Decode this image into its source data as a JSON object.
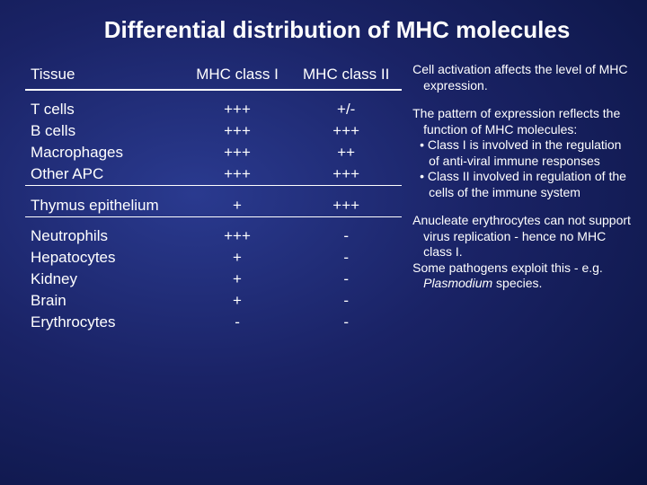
{
  "title": "Differential distribution of MHC molecules",
  "table": {
    "headers": {
      "c0": "Tissue",
      "c1": "MHC class I",
      "c2": "MHC class II"
    },
    "g1": {
      "r0": {
        "t": "T cells",
        "c1": "+++",
        "c2": "+/-"
      },
      "r1": {
        "t": "B cells",
        "c1": "+++",
        "c2": "+++"
      },
      "r2": {
        "t": "Macrophages",
        "c1": "+++",
        "c2": "++"
      },
      "r3": {
        "t": "Other APC",
        "c1": "+++",
        "c2": "+++"
      }
    },
    "g2": {
      "r0": {
        "t": "Thymus epithelium",
        "c1": "+",
        "c2": "+++"
      }
    },
    "g3": {
      "r0": {
        "t": "Neutrophils",
        "c1": "+++",
        "c2": "-"
      },
      "r1": {
        "t": "Hepatocytes",
        "c1": "+",
        "c2": "-"
      },
      "r2": {
        "t": "Kidney",
        "c1": "+",
        "c2": "-"
      },
      "r3": {
        "t": "Brain",
        "c1": "+",
        "c2": "-"
      },
      "r4": {
        "t": "Erythrocytes",
        "c1": "-",
        "c2": "-"
      }
    }
  },
  "notes": {
    "n1": "Cell activation affects the level of MHC expression.",
    "n2a": "The pattern of expression reflects the function of MHC molecules:",
    "n2b": "• Class I is involved in the regulation of anti-viral immune responses",
    "n2c": "• Class II involved in regulation of the cells of the immune system",
    "n3a": "Anucleate erythrocytes can not support virus replication - hence no MHC class I.",
    "n3b_pre": "Some pathogens exploit this - e.g. ",
    "n3b_it": "Plasmodium",
    "n3b_post": " species."
  },
  "colors": {
    "bg_center": "#2a3a8f",
    "bg_mid": "#1a2366",
    "bg_edge": "#0a1340",
    "text": "#ffffff",
    "rule": "#ffffff"
  },
  "fontsize": {
    "title": 26,
    "table": 17,
    "notes": 14
  }
}
